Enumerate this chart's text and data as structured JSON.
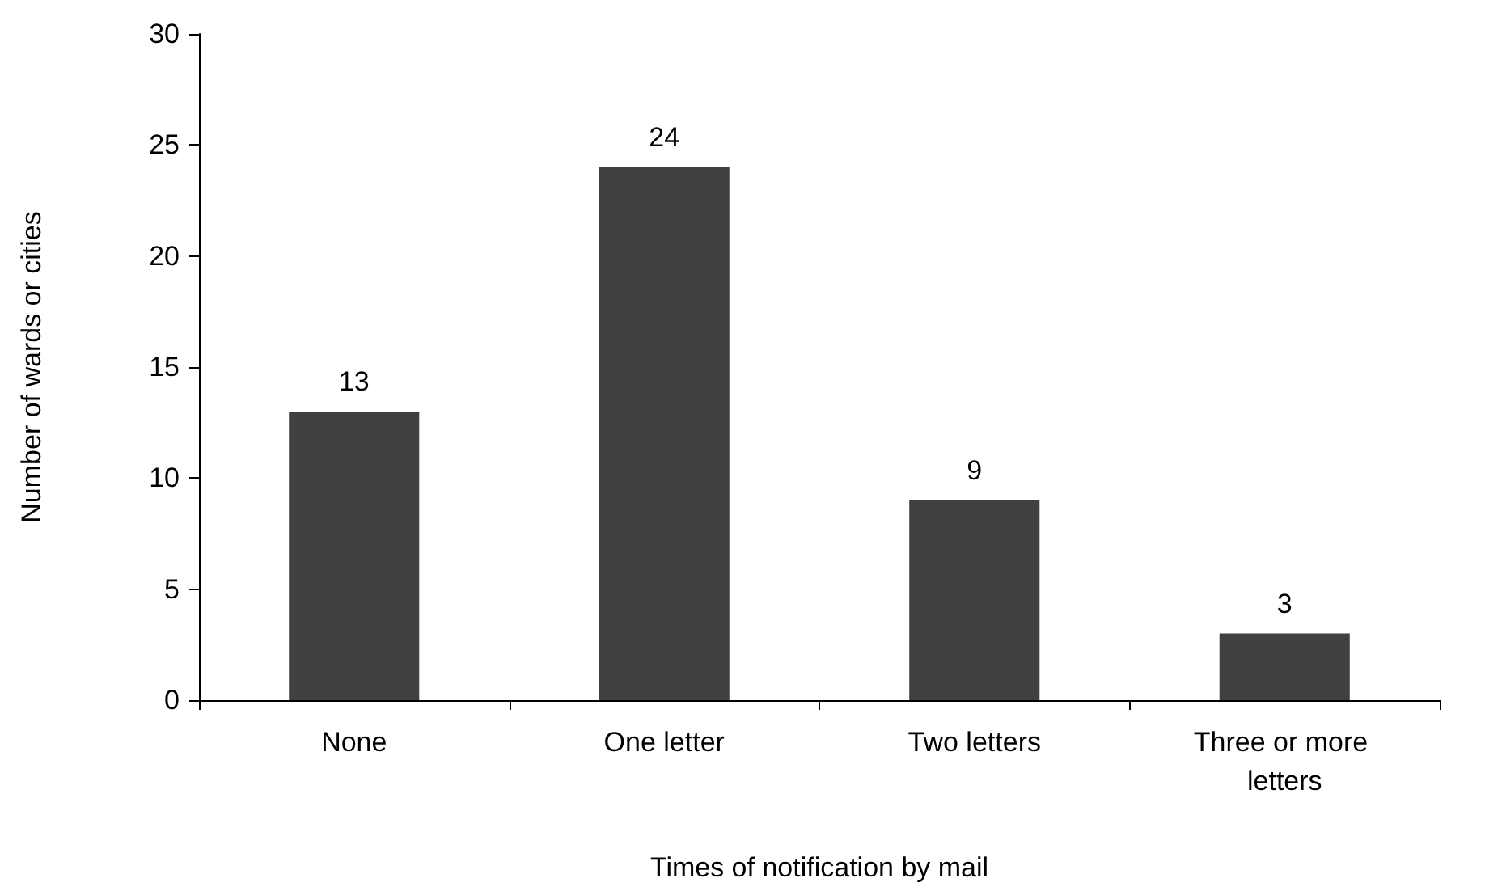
{
  "chart_data": {
    "type": "bar",
    "xlabel": "Times of notification by mail",
    "ylabel": "Number of wards or cities",
    "categories": [
      "None",
      "One letter",
      "Two letters",
      "Three or more letters"
    ],
    "values": [
      13,
      24,
      9,
      3
    ],
    "color": "#404040",
    "ylim": [
      0,
      30
    ],
    "yticks": [
      0,
      5,
      10,
      15,
      20,
      25,
      30
    ],
    "grid": false,
    "data_labels": true
  }
}
